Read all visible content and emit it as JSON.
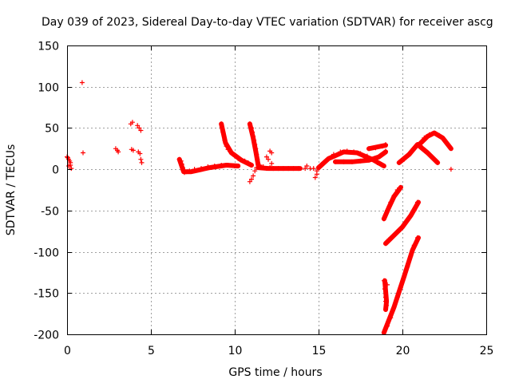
{
  "chart_data": {
    "type": "scatter",
    "title": "Day 039 of 2023, Sidereal Day-to-day VTEC variation (SDTVAR) for receiver ascg",
    "xlabel": "GPS time / hours",
    "ylabel": "SDTVAR / TECUs",
    "xlim": [
      0,
      25
    ],
    "ylim": [
      -200,
      150
    ],
    "xticks": [
      0,
      5,
      10,
      15,
      20,
      25
    ],
    "xtick_labels": [
      "0",
      "5",
      "10",
      "15",
      "20",
      "25"
    ],
    "yticks": [
      -200,
      -150,
      -100,
      -50,
      0,
      50,
      100,
      150
    ],
    "ytick_labels": [
      "-200",
      "-150",
      "-100",
      "-50",
      "0",
      "50",
      "100",
      "150"
    ],
    "grid": true,
    "marker": "+",
    "color": "#ff0000",
    "points": [
      [
        0.0,
        15
      ],
      [
        0.05,
        14
      ],
      [
        0.1,
        12
      ],
      [
        0.15,
        10
      ],
      [
        0.2,
        5
      ],
      [
        0.25,
        1
      ],
      [
        0.2,
        8
      ],
      [
        0.1,
        4
      ],
      [
        0.9,
        105
      ],
      [
        0.95,
        20
      ],
      [
        2.9,
        25
      ],
      [
        3.0,
        23
      ],
      [
        3.05,
        21
      ],
      [
        3.8,
        55
      ],
      [
        3.9,
        57
      ],
      [
        3.85,
        24
      ],
      [
        3.95,
        23
      ],
      [
        4.2,
        53
      ],
      [
        4.3,
        50
      ],
      [
        4.4,
        47
      ],
      [
        4.25,
        21
      ],
      [
        4.35,
        19
      ],
      [
        4.4,
        12
      ],
      [
        4.45,
        8
      ],
      [
        6.7,
        12
      ],
      [
        6.8,
        10
      ],
      [
        6.85,
        6
      ],
      [
        6.9,
        2
      ],
      [
        6.95,
        -2
      ],
      [
        7.0,
        -4
      ],
      [
        7.1,
        -3
      ],
      [
        7.3,
        -2
      ],
      [
        7.6,
        0
      ],
      [
        8.0,
        1
      ],
      [
        8.4,
        3
      ],
      [
        8.8,
        4
      ],
      [
        9.2,
        5
      ],
      [
        9.6,
        5
      ],
      [
        10.0,
        4
      ],
      [
        9.2,
        55
      ],
      [
        9.3,
        45
      ],
      [
        9.4,
        35
      ],
      [
        9.5,
        28
      ],
      [
        9.6,
        24
      ],
      [
        9.8,
        20
      ],
      [
        10.0,
        16
      ],
      [
        10.2,
        13
      ],
      [
        10.4,
        11
      ],
      [
        10.6,
        10
      ],
      [
        10.8,
        8
      ],
      [
        11.0,
        5
      ],
      [
        10.9,
        55
      ],
      [
        11.0,
        50
      ],
      [
        11.05,
        45
      ],
      [
        11.1,
        40
      ],
      [
        11.15,
        35
      ],
      [
        11.2,
        30
      ],
      [
        11.25,
        25
      ],
      [
        11.3,
        18
      ],
      [
        11.35,
        12
      ],
      [
        11.4,
        6
      ],
      [
        10.9,
        -15
      ],
      [
        11.0,
        -12
      ],
      [
        11.1,
        -8
      ],
      [
        11.2,
        -2
      ],
      [
        11.3,
        2
      ],
      [
        11.5,
        5
      ],
      [
        11.7,
        3
      ],
      [
        11.9,
        1
      ],
      [
        12.1,
        2
      ],
      [
        12.3,
        1
      ],
      [
        12.6,
        1
      ],
      [
        12.9,
        1
      ],
      [
        13.2,
        1
      ],
      [
        13.5,
        1
      ],
      [
        13.8,
        1
      ],
      [
        12.1,
        22
      ],
      [
        12.2,
        20
      ],
      [
        11.9,
        15
      ],
      [
        12.0,
        12
      ],
      [
        12.2,
        7
      ],
      [
        14.2,
        1
      ],
      [
        14.3,
        4
      ],
      [
        14.5,
        1
      ],
      [
        14.7,
        1
      ],
      [
        14.9,
        -2
      ],
      [
        14.8,
        -10
      ],
      [
        14.9,
        -6
      ],
      [
        15.0,
        2
      ],
      [
        15.3,
        8
      ],
      [
        15.6,
        13
      ],
      [
        15.9,
        18
      ],
      [
        16.3,
        21
      ],
      [
        16.7,
        22
      ],
      [
        17.1,
        21
      ],
      [
        17.5,
        19
      ],
      [
        17.9,
        16
      ],
      [
        18.2,
        12
      ],
      [
        18.5,
        8
      ],
      [
        18.8,
        5
      ],
      [
        16.0,
        9
      ],
      [
        16.5,
        9
      ],
      [
        17.0,
        9
      ],
      [
        17.5,
        10
      ],
      [
        18.0,
        11
      ],
      [
        18.5,
        14
      ],
      [
        18.9,
        19
      ],
      [
        19.0,
        22
      ],
      [
        18.0,
        25
      ],
      [
        18.4,
        26
      ],
      [
        18.8,
        28
      ],
      [
        19.0,
        30
      ],
      [
        19.8,
        8
      ],
      [
        20.1,
        12
      ],
      [
        20.4,
        18
      ],
      [
        20.7,
        25
      ],
      [
        20.9,
        30
      ],
      [
        21.2,
        26
      ],
      [
        21.5,
        20
      ],
      [
        21.8,
        14
      ],
      [
        22.1,
        8
      ],
      [
        21.0,
        30
      ],
      [
        21.3,
        38
      ],
      [
        21.6,
        42
      ],
      [
        21.9,
        44
      ],
      [
        22.2,
        41
      ],
      [
        22.5,
        36
      ],
      [
        22.8,
        28
      ],
      [
        22.9,
        0
      ],
      [
        18.9,
        -60
      ],
      [
        19.1,
        -50
      ],
      [
        19.3,
        -40
      ],
      [
        19.5,
        -32
      ],
      [
        19.7,
        -25
      ],
      [
        19.9,
        -22
      ],
      [
        19.0,
        -90
      ],
      [
        19.2,
        -85
      ],
      [
        19.5,
        -80
      ],
      [
        19.8,
        -74
      ],
      [
        20.1,
        -67
      ],
      [
        20.4,
        -59
      ],
      [
        20.7,
        -50
      ],
      [
        20.9,
        -40
      ],
      [
        18.9,
        -135
      ],
      [
        18.95,
        -145
      ],
      [
        19.0,
        -155
      ],
      [
        19.05,
        -165
      ],
      [
        19.1,
        -140
      ],
      [
        19.0,
        -160
      ],
      [
        18.9,
        -198
      ],
      [
        19.1,
        -190
      ],
      [
        19.3,
        -180
      ],
      [
        19.5,
        -167
      ],
      [
        19.7,
        -155
      ],
      [
        19.9,
        -143
      ],
      [
        20.1,
        -130
      ],
      [
        20.3,
        -118
      ],
      [
        20.5,
        -105
      ],
      [
        20.7,
        -92
      ],
      [
        20.9,
        -83
      ]
    ],
    "segments": [
      [
        [
          6.7,
          12
        ],
        [
          6.95,
          -3
        ],
        [
          7.4,
          -3
        ],
        [
          8.5,
          2
        ],
        [
          9.5,
          5
        ],
        [
          10.2,
          4
        ]
      ],
      [
        [
          9.2,
          55
        ],
        [
          9.45,
          32
        ],
        [
          9.8,
          20
        ],
        [
          10.4,
          11
        ],
        [
          11.0,
          5
        ]
      ],
      [
        [
          10.9,
          55
        ],
        [
          11.1,
          38
        ],
        [
          11.25,
          22
        ],
        [
          11.4,
          5
        ]
      ],
      [
        [
          11.4,
          2
        ],
        [
          12.0,
          1
        ],
        [
          13.9,
          1
        ]
      ],
      [
        [
          15.0,
          2
        ],
        [
          15.6,
          13
        ],
        [
          16.5,
          21
        ],
        [
          17.3,
          20
        ],
        [
          18.2,
          12
        ],
        [
          18.9,
          4
        ]
      ],
      [
        [
          16.0,
          9
        ],
        [
          17.0,
          9
        ],
        [
          18.0,
          11
        ],
        [
          18.6,
          15
        ],
        [
          19.0,
          21
        ]
      ],
      [
        [
          18.0,
          25
        ],
        [
          19.0,
          29
        ]
      ],
      [
        [
          19.8,
          8
        ],
        [
          20.4,
          18
        ],
        [
          20.9,
          30
        ],
        [
          21.5,
          20
        ],
        [
          22.1,
          8
        ]
      ],
      [
        [
          21.0,
          30
        ],
        [
          21.5,
          40
        ],
        [
          21.9,
          44
        ],
        [
          22.4,
          38
        ],
        [
          22.9,
          25
        ]
      ],
      [
        [
          18.9,
          -60
        ],
        [
          19.2,
          -46
        ],
        [
          19.5,
          -33
        ],
        [
          19.9,
          -22
        ]
      ],
      [
        [
          19.0,
          -90
        ],
        [
          19.5,
          -80
        ],
        [
          20.0,
          -70
        ],
        [
          20.5,
          -56
        ],
        [
          20.95,
          -40
        ]
      ],
      [
        [
          18.95,
          -135
        ],
        [
          19.05,
          -160
        ],
        [
          19.0,
          -170
        ]
      ],
      [
        [
          18.9,
          -198
        ],
        [
          19.5,
          -167
        ],
        [
          20.1,
          -130
        ],
        [
          20.6,
          -98
        ],
        [
          20.95,
          -83
        ]
      ]
    ]
  }
}
